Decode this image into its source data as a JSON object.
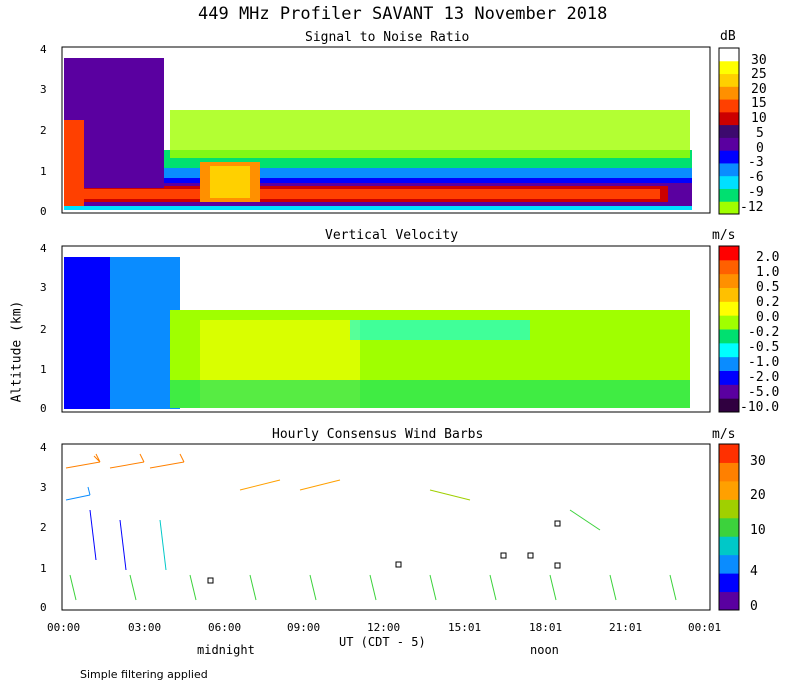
{
  "figure": {
    "title": "449 MHz Profiler SAVANT 13 November 2018",
    "ylabel": "Altitude (km)",
    "xlabel": "UT  (CDT - 5)",
    "midnight_label": "midnight",
    "noon_label": "noon",
    "footnote": "Simple filtering applied"
  },
  "chart_data": [
    {
      "type": "heatmap",
      "title": "Signal to Noise Ratio",
      "ylabel": "Altitude (km)",
      "xlabel": "UT  (CDT - 5)",
      "ylim": [
        0,
        4
      ],
      "yticks": [
        "0",
        "1",
        "2",
        "3",
        "4"
      ],
      "xticks": [
        "00:00",
        "03:00",
        "06:00",
        "09:00",
        "12:00",
        "15:01",
        "18:01",
        "21:01",
        "00:01"
      ],
      "colorbar": {
        "unit": "dB",
        "labels": [
          "30",
          "25",
          "20",
          "15",
          "10",
          "5",
          "0",
          "-3",
          "-6",
          "-9",
          "-12"
        ],
        "colors": [
          "#ffffff",
          "#ffff00",
          "#ffd000",
          "#ff9000",
          "#ff4000",
          "#cc0000",
          "#3c0a6e",
          "#5a00a0",
          "#0000ff",
          "#0a8cff",
          "#00e0ff",
          "#00e070",
          "#a0ff00"
        ]
      }
    },
    {
      "type": "heatmap",
      "title": "Vertical Velocity",
      "ylabel": "Altitude (km)",
      "xlabel": "UT  (CDT - 5)",
      "ylim": [
        0,
        4
      ],
      "yticks": [
        "0",
        "1",
        "2",
        "3",
        "4"
      ],
      "xticks": [
        "00:00",
        "03:00",
        "06:00",
        "09:00",
        "12:00",
        "15:01",
        "18:01",
        "21:01",
        "00:01"
      ],
      "colorbar": {
        "unit": "m/s",
        "labels": [
          "2.0",
          "1.0",
          "0.5",
          "0.2",
          "0.0",
          "-0.2",
          "-0.5",
          "-1.0",
          "-2.0",
          "-5.0",
          "-10.0"
        ],
        "colors": [
          "#ff0000",
          "#ff6000",
          "#ff9000",
          "#ffc000",
          "#ffff00",
          "#a0ff00",
          "#00e070",
          "#00ffff",
          "#0a8cff",
          "#0000ff",
          "#5a00a0",
          "#300040"
        ]
      }
    },
    {
      "type": "wind_barbs",
      "title": "Hourly Consensus Wind Barbs",
      "ylabel": "Altitude (km)",
      "xlabel": "UT  (CDT - 5)",
      "ylim": [
        0,
        4
      ],
      "yticks": [
        "0",
        "1",
        "2",
        "3",
        "4"
      ],
      "xticks": [
        "00:00",
        "03:00",
        "06:00",
        "09:00",
        "12:00",
        "15:01",
        "18:01",
        "21:01",
        "00:01"
      ],
      "colorbar": {
        "unit": "m/s",
        "labels": [
          "30",
          "20",
          "10",
          "4",
          "0"
        ],
        "colors": [
          "#ff3000",
          "#ff8000",
          "#ffa000",
          "#a0d000",
          "#3cd23c",
          "#00c8c8",
          "#0a8cff",
          "#0000ff",
          "#5a00a0"
        ]
      }
    }
  ]
}
